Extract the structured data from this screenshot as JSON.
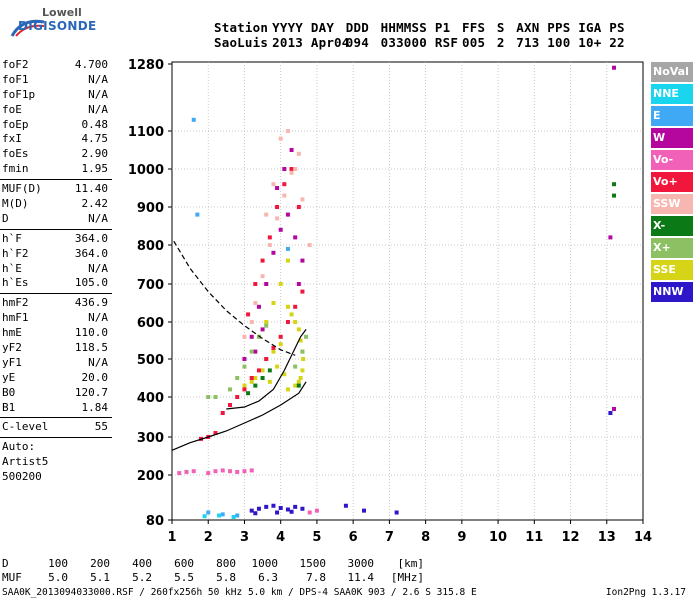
{
  "logo": {
    "line1": "Lowell",
    "line2": "DIGISONDE"
  },
  "header": {
    "labels": [
      "Station",
      "YYYY",
      "DAY",
      "DDD",
      "HHMMSS",
      "P1",
      "FFS",
      "S",
      "AXN",
      "PPS",
      "IGA",
      "PS"
    ],
    "values": [
      "SaoLuis",
      "2013",
      "Apr04",
      "094",
      "033000",
      "RSF",
      "005",
      "2",
      "713",
      "100",
      "10+",
      "22"
    ]
  },
  "params": {
    "group1": [
      {
        "name": "foF2",
        "value": "4.700"
      },
      {
        "name": "foF1",
        "value": "N/A"
      },
      {
        "name": "foF1p",
        "value": "N/A"
      },
      {
        "name": "foE",
        "value": "N/A"
      },
      {
        "name": "foEp",
        "value": "0.48"
      },
      {
        "name": "fxI",
        "value": "4.75"
      },
      {
        "name": "foEs",
        "value": "2.90"
      },
      {
        "name": "fmin",
        "value": "1.95"
      }
    ],
    "group2": [
      {
        "name": "MUF(D)",
        "value": "11.40"
      },
      {
        "name": "M(D)",
        "value": "2.42"
      },
      {
        "name": "D",
        "value": "N/A"
      }
    ],
    "group3": [
      {
        "name": "h`F",
        "value": "364.0"
      },
      {
        "name": "h`F2",
        "value": "364.0"
      },
      {
        "name": "h`E",
        "value": "N/A"
      },
      {
        "name": "h`Es",
        "value": "105.0"
      }
    ],
    "group4": [
      {
        "name": "hmF2",
        "value": "436.9"
      },
      {
        "name": "hmF1",
        "value": "N/A"
      },
      {
        "name": "hmE",
        "value": "110.0"
      },
      {
        "name": "yF2",
        "value": "118.5"
      },
      {
        "name": "yF1",
        "value": "N/A"
      },
      {
        "name": "yE",
        "value": "20.0"
      },
      {
        "name": "B0",
        "value": "120.7"
      },
      {
        "name": "B1",
        "value": "1.84"
      }
    ],
    "group5": [
      {
        "name": "C-level",
        "value": "55"
      }
    ],
    "auto": [
      "Auto:",
      "Artist5",
      "500200"
    ]
  },
  "legend": [
    {
      "label": "NoVal",
      "color": "#a6a6a6"
    },
    {
      "label": "NNE",
      "color": "#19d6ee"
    },
    {
      "label": "E",
      "color": "#3fa9f5"
    },
    {
      "label": "W",
      "color": "#b5069e"
    },
    {
      "label": "Vo-",
      "color": "#f261b8"
    },
    {
      "label": "Vo+",
      "color": "#f0163c"
    },
    {
      "label": "SSW",
      "color": "#f7b7b0"
    },
    {
      "label": "X-",
      "color": "#0b7a16"
    },
    {
      "label": "X+",
      "color": "#8cc063"
    },
    {
      "label": "SSE",
      "color": "#d6d416"
    },
    {
      "label": "NNW",
      "color": "#2d17c9"
    }
  ],
  "footer": {
    "d_label": "D",
    "d_values": [
      "100",
      "200",
      "400",
      "600",
      "800",
      "1000",
      "1500",
      "3000",
      "[km]"
    ],
    "muf_label": "MUF",
    "muf_values": [
      "5.0",
      "5.1",
      "5.2",
      "5.5",
      "5.8",
      "6.3",
      "7.8",
      "11.4",
      "[MHz]"
    ],
    "file_line": "SAA0K_2013094033000.RSF / 260fx256h 50 kHz 5.0 km / DPS-4 SAA0K 903 / 2.6 S 315.8 E",
    "version": "Ion2Png 1.3.17"
  },
  "chart_data": {
    "type": "scatter",
    "title": "",
    "xlabel": "",
    "ylabel": "",
    "xlim": [
      1,
      14
    ],
    "ylim": [
      80,
      1280
    ],
    "x_ticks": [
      "1",
      "2",
      "3",
      "4",
      "5",
      "6",
      "7",
      "8",
      "9",
      "10",
      "11",
      "12",
      "13",
      "14"
    ],
    "y_ticks": [
      "80",
      "200",
      "300",
      "400",
      "500",
      "600",
      "700",
      "800",
      "900",
      "1000",
      "1100",
      "1280"
    ],
    "y_scale": "pseudo-log",
    "grid": true,
    "series": [
      {
        "name": "SSE",
        "points": [
          [
            4.2,
            420
          ],
          [
            4.4,
            430
          ],
          [
            4.5,
            440
          ],
          [
            4.55,
            450
          ],
          [
            4.6,
            470
          ],
          [
            4.62,
            500
          ],
          [
            4.6,
            520
          ],
          [
            4.55,
            550
          ],
          [
            4.5,
            580
          ],
          [
            4.4,
            600
          ],
          [
            4.3,
            620
          ],
          [
            4.2,
            640
          ],
          [
            4.0,
            540
          ],
          [
            3.8,
            520
          ],
          [
            3.6,
            500
          ],
          [
            3.5,
            470
          ],
          [
            3.3,
            450
          ],
          [
            3.2,
            440
          ],
          [
            3.0,
            430
          ],
          [
            3.4,
            560
          ],
          [
            3.6,
            600
          ],
          [
            3.8,
            650
          ],
          [
            4.0,
            700
          ],
          [
            4.2,
            760
          ],
          [
            3.9,
            480
          ],
          [
            4.1,
            460
          ],
          [
            3.7,
            440
          ]
        ]
      },
      {
        "name": "Vo+",
        "points": [
          [
            2.4,
            360
          ],
          [
            2.6,
            380
          ],
          [
            2.8,
            400
          ],
          [
            3.0,
            420
          ],
          [
            3.2,
            450
          ],
          [
            3.4,
            470
          ],
          [
            3.6,
            500
          ],
          [
            3.8,
            530
          ],
          [
            4.0,
            560
          ],
          [
            4.2,
            600
          ],
          [
            4.4,
            640
          ],
          [
            4.6,
            680
          ],
          [
            3.1,
            620
          ],
          [
            3.3,
            700
          ],
          [
            3.5,
            760
          ],
          [
            3.7,
            820
          ],
          [
            3.9,
            900
          ],
          [
            4.1,
            960
          ],
          [
            4.3,
            1000
          ],
          [
            4.5,
            900
          ],
          [
            2.2,
            310
          ],
          [
            2.0,
            300
          ],
          [
            1.8,
            295
          ]
        ]
      },
      {
        "name": "W",
        "points": [
          [
            3.0,
            500
          ],
          [
            3.2,
            560
          ],
          [
            3.4,
            640
          ],
          [
            3.6,
            700
          ],
          [
            3.8,
            780
          ],
          [
            4.0,
            840
          ],
          [
            4.2,
            880
          ],
          [
            4.4,
            820
          ],
          [
            4.6,
            760
          ],
          [
            3.9,
            950
          ],
          [
            4.1,
            1000
          ],
          [
            4.3,
            1050
          ],
          [
            4.5,
            700
          ],
          [
            3.5,
            580
          ],
          [
            3.3,
            520
          ],
          [
            13.2,
            370
          ],
          [
            13.1,
            820
          ],
          [
            13.2,
            1270
          ]
        ]
      },
      {
        "name": "SSW",
        "points": [
          [
            3.3,
            650
          ],
          [
            3.5,
            720
          ],
          [
            3.7,
            800
          ],
          [
            3.9,
            870
          ],
          [
            4.1,
            930
          ],
          [
            4.3,
            990
          ],
          [
            4.5,
            1040
          ],
          [
            4.0,
            1080
          ],
          [
            4.2,
            1100
          ],
          [
            3.8,
            960
          ],
          [
            3.6,
            880
          ],
          [
            4.4,
            1000
          ],
          [
            4.6,
            920
          ],
          [
            4.8,
            800
          ],
          [
            3.2,
            600
          ],
          [
            3.0,
            560
          ]
        ]
      },
      {
        "name": "X+",
        "points": [
          [
            2.6,
            420
          ],
          [
            2.8,
            450
          ],
          [
            3.0,
            480
          ],
          [
            3.2,
            520
          ],
          [
            3.4,
            560
          ],
          [
            3.6,
            590
          ],
          [
            4.4,
            480
          ],
          [
            4.6,
            520
          ],
          [
            4.7,
            560
          ],
          [
            2.2,
            400
          ],
          [
            2.0,
            400
          ]
        ]
      },
      {
        "name": "X-",
        "points": [
          [
            3.1,
            410
          ],
          [
            3.3,
            430
          ],
          [
            3.5,
            450
          ],
          [
            3.7,
            470
          ],
          [
            4.5,
            430
          ],
          [
            13.2,
            960
          ],
          [
            13.2,
            930
          ]
        ]
      },
      {
        "name": "NNW",
        "points": [
          [
            3.2,
            105
          ],
          [
            3.4,
            110
          ],
          [
            3.6,
            115
          ],
          [
            3.8,
            118
          ],
          [
            4.0,
            112
          ],
          [
            4.2,
            108
          ],
          [
            4.4,
            115
          ],
          [
            4.6,
            110
          ],
          [
            3.3,
            98
          ],
          [
            3.9,
            100
          ],
          [
            4.3,
            102
          ],
          [
            5.8,
            118
          ],
          [
            6.3,
            105
          ],
          [
            7.2,
            100
          ],
          [
            13.1,
            360
          ]
        ]
      },
      {
        "name": "Vo-",
        "points": [
          [
            2.0,
            205
          ],
          [
            2.2,
            210
          ],
          [
            2.4,
            212
          ],
          [
            2.6,
            210
          ],
          [
            2.8,
            208
          ],
          [
            3.0,
            210
          ],
          [
            3.2,
            212
          ],
          [
            1.4,
            208
          ],
          [
            1.6,
            210
          ],
          [
            1.2,
            205
          ],
          [
            4.8,
            100
          ],
          [
            5.0,
            105
          ]
        ]
      },
      {
        "name": "E",
        "points": [
          [
            1.6,
            1130
          ],
          [
            1.7,
            880
          ],
          [
            4.2,
            790
          ],
          [
            2.0,
            100
          ],
          [
            2.4,
            95
          ],
          [
            2.8,
            92
          ]
        ]
      },
      {
        "name": "NNE",
        "points": [
          [
            1.9,
            90
          ],
          [
            2.3,
            92
          ],
          [
            2.7,
            88
          ]
        ]
      }
    ],
    "curves": [
      {
        "style": "dashed",
        "points": [
          [
            1.05,
            810
          ],
          [
            1.5,
            740
          ],
          [
            2.0,
            680
          ],
          [
            2.5,
            630
          ],
          [
            3.0,
            590
          ],
          [
            3.5,
            555
          ],
          [
            4.0,
            525
          ],
          [
            4.4,
            510
          ]
        ]
      },
      {
        "style": "solid",
        "points": [
          [
            1.0,
            265
          ],
          [
            1.5,
            285
          ],
          [
            2.0,
            300
          ],
          [
            2.5,
            315
          ],
          [
            3.0,
            335
          ],
          [
            3.5,
            355
          ],
          [
            4.0,
            380
          ],
          [
            4.5,
            410
          ],
          [
            4.7,
            440
          ]
        ]
      },
      {
        "style": "solid",
        "points": [
          [
            2.5,
            370
          ],
          [
            3.0,
            375
          ],
          [
            3.4,
            390
          ],
          [
            3.8,
            420
          ],
          [
            4.1,
            470
          ],
          [
            4.35,
            520
          ],
          [
            4.55,
            560
          ],
          [
            4.7,
            580
          ]
        ]
      }
    ]
  }
}
